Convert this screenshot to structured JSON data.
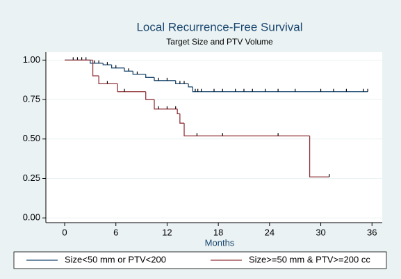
{
  "chart_data": {
    "type": "km",
    "title": "Local Recurrence-Free Survival",
    "subtitle": "Target Size and PTV Volume",
    "x_label": "Months",
    "xlim": [
      -2.2,
      37.2
    ],
    "xticks": [
      0,
      6,
      12,
      18,
      24,
      30,
      36
    ],
    "ylim": [
      -0.03,
      1.05
    ],
    "yticks": [
      {
        "value": 0,
        "label": "0.00"
      },
      {
        "value": 0.25,
        "label": "0.25"
      },
      {
        "value": 0.5,
        "label": "0.50"
      },
      {
        "value": 0.75,
        "label": "0.75"
      },
      {
        "value": 1,
        "label": "1.00"
      }
    ],
    "grid": true,
    "legend": "bottom",
    "series": [
      {
        "name": "Size<50 mm or PTV<200",
        "color": "#1a476f",
        "x": [
          0,
          3,
          4.5,
          5.5,
          7,
          8,
          9.5,
          10.5,
          13,
          14.5,
          15,
          35.5
        ],
        "values": [
          1,
          0.98,
          0.97,
          0.95,
          0.93,
          0.91,
          0.89,
          0.87,
          0.85,
          0.83,
          0.8,
          0.8
        ],
        "censor_x": [
          1,
          1.5,
          2,
          2.5,
          3.5,
          4,
          5,
          6,
          7.5,
          8.5,
          11,
          12,
          13.5,
          14,
          15.3,
          15.6,
          16,
          17.5,
          18.5,
          20,
          21,
          22,
          23.5,
          25,
          27,
          30,
          31.5,
          33,
          35,
          35.5
        ],
        "censor_values": [
          1,
          1,
          1,
          1,
          0.98,
          0.98,
          0.97,
          0.95,
          0.93,
          0.91,
          0.87,
          0.87,
          0.85,
          0.85,
          0.8,
          0.8,
          0.8,
          0.8,
          0.8,
          0.8,
          0.8,
          0.8,
          0.8,
          0.8,
          0.8,
          0.8,
          0.8,
          0.8,
          0.8,
          0.8
        ]
      },
      {
        "name": "Size>=50 mm & PTV>=200 cc",
        "color": "#90353b",
        "x": [
          0,
          3.3,
          4,
          6.2,
          9.5,
          10.5,
          13.2,
          13.5,
          14,
          28.7,
          31
        ],
        "values": [
          1,
          0.9,
          0.85,
          0.8,
          0.75,
          0.69,
          0.66,
          0.6,
          0.52,
          0.26,
          0.26
        ],
        "censor_x": [
          5,
          7,
          11,
          12,
          13,
          15.5,
          18.5,
          25,
          31
        ],
        "censor_values": [
          0.85,
          0.8,
          0.69,
          0.69,
          0.69,
          0.52,
          0.52,
          0.52,
          0.26
        ]
      }
    ]
  }
}
